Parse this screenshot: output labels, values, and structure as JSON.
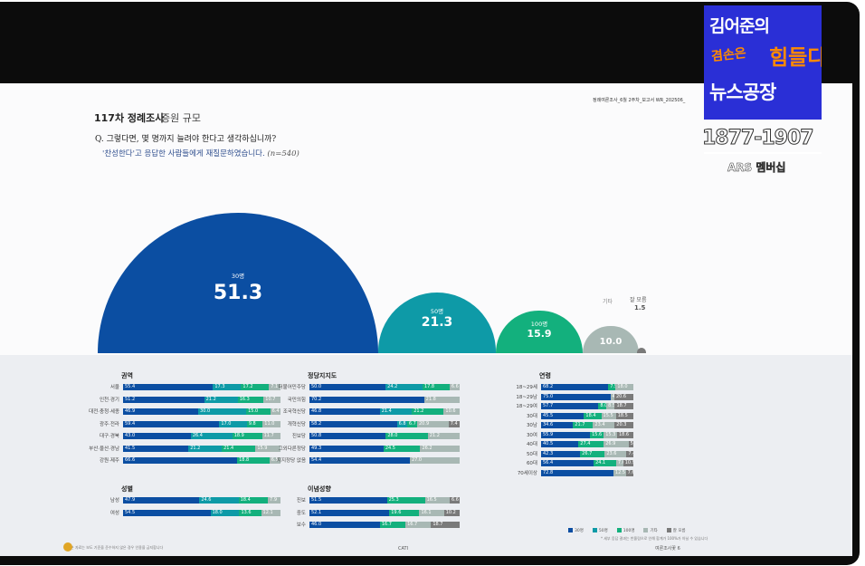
{
  "header": {
    "title": "117차 정례조사",
    "subtitle": "증원 규모",
    "doc_code": "정례여론조사_6월 2주차_보고서    WR_202506_"
  },
  "question": {
    "q": "Q. 그렇다면, 몇 명까지 늘려야 한다고 생각하십니까?",
    "sub": "'찬성한다'고 응답한 사람들에게 재질문하였습니다.",
    "n": "(n=540)"
  },
  "bubbles": [
    {
      "label": "30명",
      "value": "51.3",
      "color": "#0b4ea2"
    },
    {
      "label": "50명",
      "value": "21.3",
      "color": "#0e9aa7"
    },
    {
      "label": "100명",
      "value": "15.9",
      "color": "#13b07d"
    },
    {
      "label": "기타",
      "value": "10.0",
      "color": "#a8b8b4"
    },
    {
      "label": "잘 모름",
      "value": "1.5",
      "color": "#7a7a7a"
    }
  ],
  "sections": {
    "region": {
      "title": "권역",
      "rows": [
        {
          "label": "서울",
          "values": [
            "55.4",
            "17.3",
            "17.2",
            "7.1",
            ""
          ]
        },
        {
          "label": "인천·경기",
          "values": [
            "51.2",
            "21.2",
            "16.3",
            "10.7",
            ""
          ]
        },
        {
          "label": "대전·충청·세종",
          "values": [
            "46.9",
            "30.0",
            "15.0",
            "6.4",
            ""
          ]
        },
        {
          "label": "광주·전라",
          "values": [
            "59.4",
            "17.0",
            "9.8",
            "11.0",
            ""
          ]
        },
        {
          "label": "대구·경북",
          "values": [
            "43.0",
            "26.4",
            "18.9",
            "11.7",
            ""
          ]
        },
        {
          "label": "부산·울산·경남",
          "values": [
            "41.5",
            "21.2",
            "21.4",
            "15.9",
            ""
          ]
        },
        {
          "label": "강원·제주",
          "values": [
            "66.6",
            "",
            "18.8",
            "6.5",
            ""
          ]
        }
      ]
    },
    "gender": {
      "title": "성별",
      "rows": [
        {
          "label": "남성",
          "values": [
            "47.9",
            "24.6",
            "18.4",
            "7.9",
            ""
          ]
        },
        {
          "label": "여성",
          "values": [
            "54.5",
            "18.0",
            "13.6",
            "12.1",
            ""
          ]
        }
      ]
    },
    "party": {
      "title": "정당지지도",
      "rows": [
        {
          "label": "더불어민주당",
          "values": [
            "50.0",
            "24.2",
            "17.8",
            "6.6",
            ""
          ]
        },
        {
          "label": "국민의힘",
          "values": [
            "70.2",
            "",
            "",
            "21.8",
            ""
          ]
        },
        {
          "label": "조국혁신당",
          "values": [
            "46.8",
            "21.4",
            "21.2",
            "10.6",
            ""
          ]
        },
        {
          "label": "개혁신당",
          "values": [
            "58.2",
            "6.8",
            "6.7",
            "20.9",
            "7.4"
          ]
        },
        {
          "label": "진보당",
          "values": [
            "50.8",
            "",
            "28.0",
            "21.2",
            ""
          ]
        },
        {
          "label": "그외다른정당",
          "values": [
            "49.3",
            "",
            "24.5",
            "26.2",
            ""
          ]
        },
        {
          "label": "지지정당 없음",
          "values": [
            "54.4",
            "",
            "",
            "27.0",
            ""
          ]
        }
      ]
    },
    "ideology": {
      "title": "이념성향",
      "rows": [
        {
          "label": "진보",
          "values": [
            "51.5",
            "",
            "25.3",
            "16.5",
            "6.6"
          ]
        },
        {
          "label": "중도",
          "values": [
            "52.1",
            "",
            "19.6",
            "16.1",
            "10.2"
          ]
        },
        {
          "label": "보수",
          "values": [
            "46.0",
            "",
            "16.7",
            "16.7",
            "18.7"
          ]
        }
      ]
    },
    "age": {
      "title": "연령",
      "rows": [
        {
          "label": "18~29세",
          "values": [
            "68.2",
            "",
            "7.5",
            "18.0",
            ""
          ]
        },
        {
          "label": "18~29남",
          "values": [
            "75.0",
            "",
            "",
            "4.4",
            "20.6"
          ]
        },
        {
          "label": "18~29여",
          "values": [
            "57.7",
            "",
            "8.0",
            "8.5",
            "18.7"
          ]
        },
        {
          "label": "30대",
          "values": [
            "45.5",
            "",
            "18.4",
            "15.5",
            "18.5"
          ]
        },
        {
          "label": "30남",
          "values": [
            "34.6",
            "",
            "21.7",
            "23.4",
            "20.3"
          ]
        },
        {
          "label": "30여",
          "values": [
            "55.9",
            "",
            "15.6",
            "15.3",
            "18.6"
          ]
        },
        {
          "label": "40대",
          "values": [
            "40.5",
            "",
            "27.4",
            "26.9",
            "5.2"
          ]
        },
        {
          "label": "50대",
          "values": [
            "42.3",
            "",
            "26.7",
            "23.6",
            "7.4"
          ]
        },
        {
          "label": "60대",
          "values": [
            "56.4",
            "",
            "24.1",
            "7.6",
            "10.9"
          ]
        },
        {
          "label": "70세이상",
          "values": [
            "72.8",
            "",
            "",
            "12.5",
            "7.6"
          ]
        }
      ]
    }
  },
  "legend": {
    "items": [
      {
        "label": "30명",
        "color": "#0b4ea2"
      },
      {
        "label": "50명",
        "color": "#0e9aa7"
      },
      {
        "label": "100명",
        "color": "#13b07d"
      },
      {
        "label": "기타",
        "color": "#a8b8b4"
      },
      {
        "label": "잘 모름",
        "color": "#7a7a7a"
      }
    ]
  },
  "footer": {
    "left": "본 자료는 보도 기준을 준수하지 않은 경우 인용을 금지합니다",
    "mid": "CATI",
    "right": "여론조사꽃  6",
    "note": "* 세부 응답 결과는 반올림으로 인해 합계가 100%가 아닐 수 있습니다"
  },
  "overlay": {
    "logo_line1": "김어준의",
    "logo_line2a": "겸손은",
    "logo_line2b": "힘들다",
    "logo_line3": "뉴스공장",
    "phone": "1877-1907",
    "ars": "ARS 멤버십"
  }
}
